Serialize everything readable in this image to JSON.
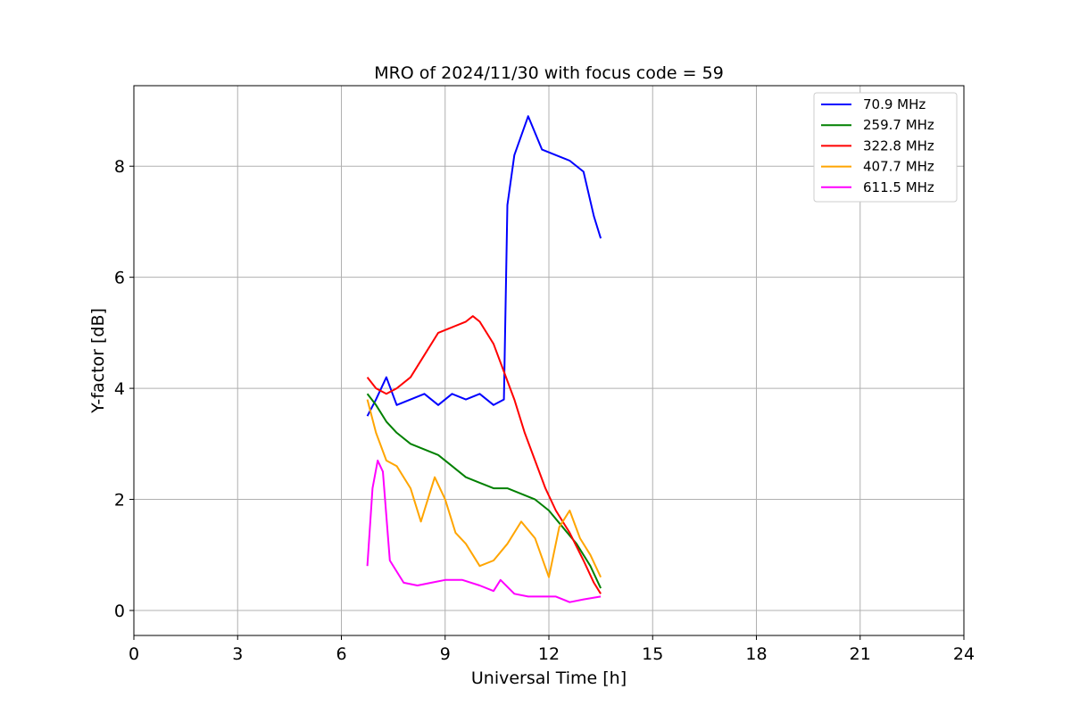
{
  "chart_data": {
    "type": "line",
    "title": "MRO of 2024/11/30 with focus code = 59",
    "xlabel": "Universal Time [h]",
    "ylabel": "Y-factor [dB]",
    "xlim": [
      0,
      24
    ],
    "ylim": [
      -0.45,
      9.45
    ],
    "x_ticks": [
      0,
      3,
      6,
      9,
      12,
      15,
      18,
      21,
      24
    ],
    "y_ticks": [
      0,
      2,
      4,
      6,
      8
    ],
    "grid": true,
    "legend_position": "top-right",
    "series": [
      {
        "name": " 70.9 MHz",
        "color": "#0000ff",
        "x": [
          6.75,
          7.0,
          7.3,
          7.6,
          8.0,
          8.4,
          8.8,
          9.2,
          9.6,
          10.0,
          10.4,
          10.7,
          10.8,
          11.0,
          11.4,
          11.8,
          12.2,
          12.6,
          13.0,
          13.3,
          13.5
        ],
        "y": [
          3.5,
          3.8,
          4.2,
          3.7,
          3.8,
          3.9,
          3.7,
          3.9,
          3.8,
          3.9,
          3.7,
          3.8,
          7.3,
          8.2,
          8.9,
          8.3,
          8.2,
          8.1,
          7.9,
          7.1,
          6.7
        ]
      },
      {
        "name": " 259.7 MHz",
        "color": "#008000",
        "x": [
          6.75,
          7.0,
          7.3,
          7.6,
          8.0,
          8.4,
          8.8,
          9.2,
          9.6,
          10.0,
          10.4,
          10.8,
          11.2,
          11.6,
          12.0,
          12.4,
          12.8,
          13.2,
          13.5
        ],
        "y": [
          3.9,
          3.7,
          3.4,
          3.2,
          3.0,
          2.9,
          2.8,
          2.6,
          2.4,
          2.3,
          2.2,
          2.2,
          2.1,
          2.0,
          1.8,
          1.5,
          1.2,
          0.8,
          0.4
        ]
      },
      {
        "name": " 322.8 MHz",
        "color": "#ff0000",
        "x": [
          6.75,
          7.0,
          7.3,
          7.6,
          8.0,
          8.4,
          8.8,
          9.2,
          9.6,
          9.8,
          10.0,
          10.4,
          10.7,
          11.0,
          11.3,
          11.6,
          11.9,
          12.2,
          12.6,
          13.0,
          13.3,
          13.5
        ],
        "y": [
          4.2,
          4.0,
          3.9,
          4.0,
          4.2,
          4.6,
          5.0,
          5.1,
          5.2,
          5.3,
          5.2,
          4.8,
          4.3,
          3.8,
          3.2,
          2.7,
          2.2,
          1.8,
          1.4,
          0.9,
          0.5,
          0.3
        ]
      },
      {
        "name": " 407.7 MHz",
        "color": "#ffa500",
        "x": [
          6.75,
          7.0,
          7.3,
          7.6,
          8.0,
          8.3,
          8.7,
          9.0,
          9.3,
          9.6,
          10.0,
          10.4,
          10.8,
          11.2,
          11.6,
          12.0,
          12.3,
          12.6,
          12.9,
          13.2,
          13.5
        ],
        "y": [
          3.8,
          3.2,
          2.7,
          2.6,
          2.2,
          1.6,
          2.4,
          2.0,
          1.4,
          1.2,
          0.8,
          0.9,
          1.2,
          1.6,
          1.3,
          0.6,
          1.5,
          1.8,
          1.3,
          1.0,
          0.6
        ]
      },
      {
        "name": " 611.5 MHz",
        "color": "#ff00ff",
        "x": [
          6.75,
          6.9,
          7.05,
          7.2,
          7.4,
          7.8,
          8.2,
          8.6,
          9.0,
          9.5,
          10.0,
          10.4,
          10.6,
          11.0,
          11.4,
          11.8,
          12.2,
          12.6,
          13.0,
          13.5
        ],
        "y": [
          0.8,
          2.2,
          2.7,
          2.5,
          0.9,
          0.5,
          0.45,
          0.5,
          0.55,
          0.55,
          0.45,
          0.35,
          0.55,
          0.3,
          0.25,
          0.25,
          0.25,
          0.15,
          0.2,
          0.25
        ]
      }
    ]
  }
}
